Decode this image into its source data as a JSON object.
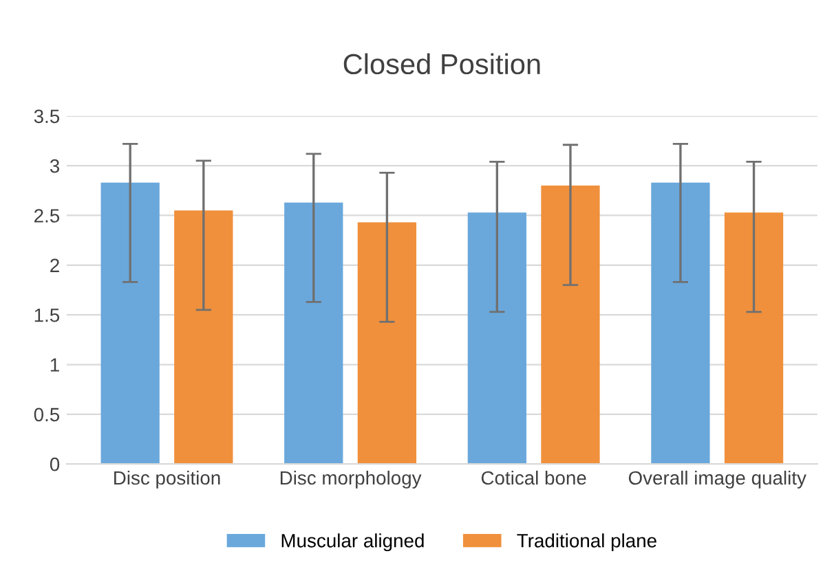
{
  "chart_data": {
    "type": "bar",
    "title": "Closed Position",
    "categories": [
      "Disc position",
      "Disc morphology",
      "Cotical bone",
      "Overall image quality"
    ],
    "series": [
      {
        "name": "Muscular aligned",
        "color": "#6aa8dc",
        "values": [
          2.83,
          2.63,
          2.53,
          2.83
        ],
        "errors": [
          [
            1.83,
            3.22
          ],
          [
            1.63,
            3.12
          ],
          [
            1.53,
            3.04
          ],
          [
            1.83,
            3.22
          ]
        ]
      },
      {
        "name": "Traditional plane",
        "color": "#f0903c",
        "values": [
          2.55,
          2.43,
          2.8,
          2.53
        ],
        "errors": [
          [
            1.55,
            3.05
          ],
          [
            1.43,
            2.93
          ],
          [
            1.8,
            3.21
          ],
          [
            1.53,
            3.04
          ]
        ]
      }
    ],
    "ylim": [
      0,
      3.5
    ],
    "yticks": [
      0,
      0.5,
      1,
      1.5,
      2,
      2.5,
      3,
      3.5
    ],
    "grid": "y",
    "legend": "bottom"
  }
}
